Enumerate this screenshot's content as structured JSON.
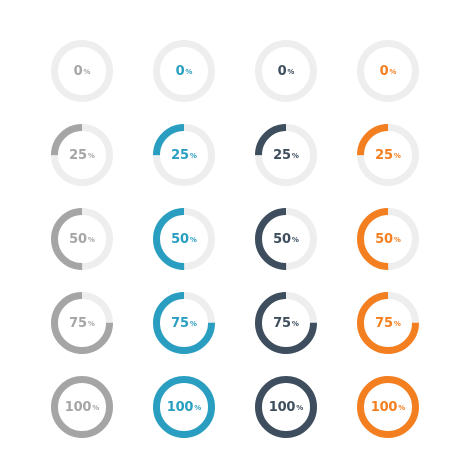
{
  "unit_symbol": "%",
  "track_color": "#eeeeee",
  "palettes": [
    {
      "name": "gray",
      "color": "#a5a5a5",
      "text_color": "#a5a5a5"
    },
    {
      "name": "blue",
      "color": "#2a9ec0",
      "text_color": "#2a9ec0"
    },
    {
      "name": "slate",
      "color": "#3e4e5e",
      "text_color": "#3e4e5e"
    },
    {
      "name": "orange",
      "color": "#f47f20",
      "text_color": "#f47f20"
    }
  ],
  "levels": [
    {
      "label": "0",
      "value": 0
    },
    {
      "label": "25",
      "value": 0.25
    },
    {
      "label": "50",
      "value": 0.5
    },
    {
      "label": "75",
      "value": 0.75
    },
    {
      "label": "100",
      "value": 1
    }
  ]
}
